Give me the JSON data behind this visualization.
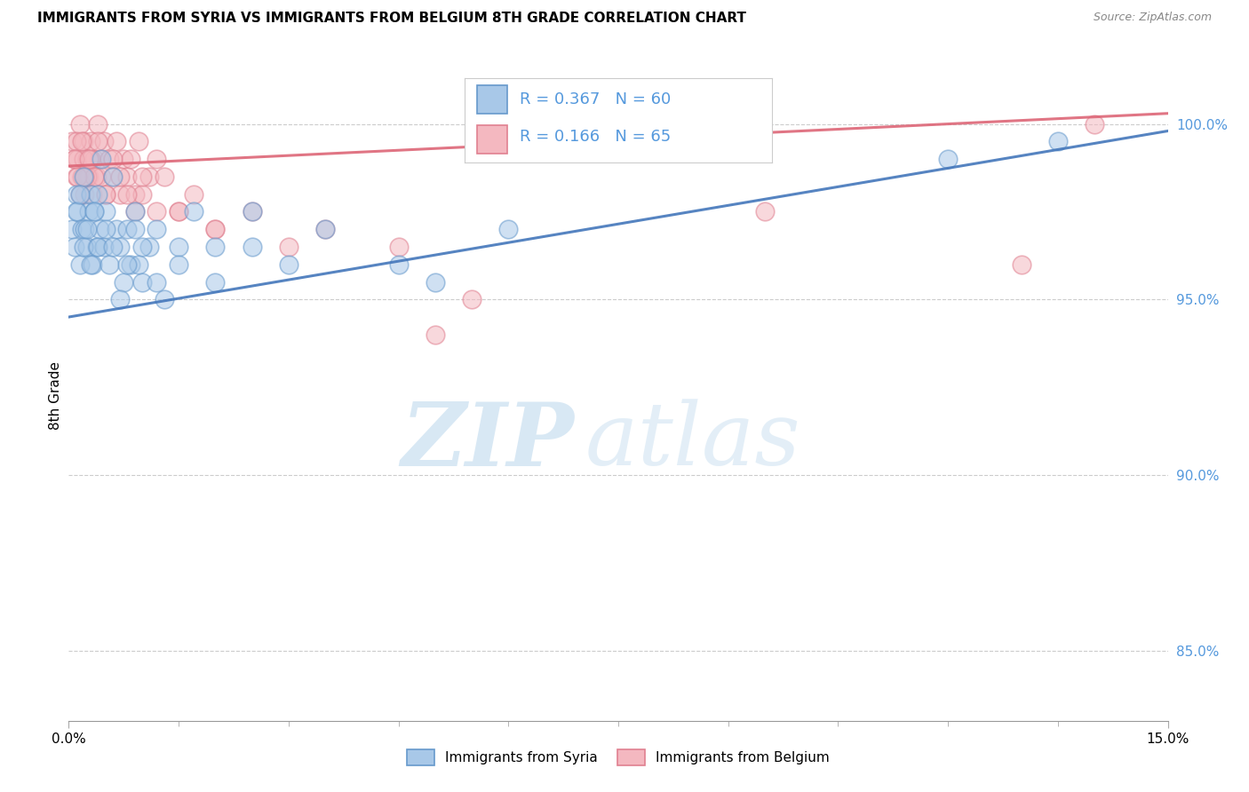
{
  "title": "IMMIGRANTS FROM SYRIA VS IMMIGRANTS FROM BELGIUM 8TH GRADE CORRELATION CHART",
  "source": "Source: ZipAtlas.com",
  "ylabel": "8th Grade",
  "xlim": [
    0.0,
    15.0
  ],
  "ylim": [
    83.0,
    101.5
  ],
  "y_ticks": [
    85.0,
    90.0,
    95.0,
    100.0
  ],
  "y_tick_labels": [
    "85.0%",
    "90.0%",
    "95.0%",
    "100.0%"
  ],
  "legend_r1": "R = 0.367",
  "legend_n1": "N = 60",
  "legend_r2": "R = 0.166",
  "legend_n2": "N = 65",
  "legend_label1": "Immigrants from Syria",
  "legend_label2": "Immigrants from Belgium",
  "color_syria": "#a8c8e8",
  "color_belgium": "#f4b8c0",
  "color_syria_edge": "#6699cc",
  "color_belgium_edge": "#e08090",
  "color_syria_line": "#4477bb",
  "color_belgium_line": "#dd6677",
  "color_ytick": "#5599dd",
  "watermark_zip": "ZIP",
  "watermark_atlas": "atlas",
  "syria_x": [
    0.05,
    0.08,
    0.1,
    0.12,
    0.15,
    0.18,
    0.2,
    0.22,
    0.25,
    0.28,
    0.3,
    0.32,
    0.35,
    0.38,
    0.4,
    0.42,
    0.45,
    0.48,
    0.5,
    0.55,
    0.6,
    0.65,
    0.7,
    0.75,
    0.8,
    0.85,
    0.9,
    0.95,
    1.0,
    1.1,
    1.2,
    1.3,
    1.5,
    1.7,
    2.0,
    2.5,
    3.0,
    3.5,
    4.5,
    5.0,
    0.1,
    0.15,
    0.2,
    0.25,
    0.3,
    0.35,
    0.4,
    0.5,
    0.6,
    0.7,
    0.8,
    0.9,
    1.0,
    1.2,
    1.5,
    2.0,
    2.5,
    6.0,
    12.0,
    13.5
  ],
  "syria_y": [
    97.0,
    96.5,
    98.0,
    97.5,
    96.0,
    97.0,
    98.5,
    97.0,
    96.5,
    97.5,
    98.0,
    96.0,
    97.5,
    96.5,
    98.0,
    97.0,
    99.0,
    96.5,
    97.5,
    96.0,
    98.5,
    97.0,
    96.5,
    95.5,
    97.0,
    96.0,
    97.5,
    96.0,
    95.5,
    96.5,
    97.0,
    95.0,
    96.5,
    97.5,
    95.5,
    96.5,
    96.0,
    97.0,
    96.0,
    95.5,
    97.5,
    98.0,
    96.5,
    97.0,
    96.0,
    97.5,
    96.5,
    97.0,
    96.5,
    95.0,
    96.0,
    97.0,
    96.5,
    95.5,
    96.0,
    96.5,
    97.5,
    97.0,
    99.0,
    99.5
  ],
  "belgium_x": [
    0.05,
    0.08,
    0.1,
    0.12,
    0.15,
    0.18,
    0.2,
    0.22,
    0.25,
    0.28,
    0.3,
    0.32,
    0.35,
    0.38,
    0.4,
    0.42,
    0.45,
    0.48,
    0.5,
    0.55,
    0.6,
    0.65,
    0.7,
    0.75,
    0.8,
    0.85,
    0.9,
    0.95,
    1.0,
    1.1,
    1.2,
    1.3,
    1.5,
    1.7,
    2.0,
    2.5,
    3.0,
    3.5,
    4.5,
    5.5,
    0.1,
    0.15,
    0.2,
    0.25,
    0.3,
    0.35,
    0.4,
    0.5,
    0.6,
    0.7,
    0.8,
    0.9,
    1.0,
    1.2,
    1.5,
    2.0,
    5.0,
    9.5,
    13.0,
    14.0,
    0.08,
    0.12,
    0.18,
    0.22,
    0.28
  ],
  "belgium_y": [
    99.5,
    99.0,
    98.5,
    99.0,
    100.0,
    98.5,
    99.5,
    98.0,
    99.0,
    98.5,
    99.5,
    98.0,
    99.0,
    98.5,
    100.0,
    99.0,
    98.5,
    99.5,
    98.0,
    99.0,
    98.5,
    99.5,
    98.0,
    99.0,
    98.5,
    99.0,
    98.0,
    99.5,
    98.0,
    98.5,
    99.0,
    98.5,
    97.5,
    98.0,
    97.0,
    97.5,
    96.5,
    97.0,
    96.5,
    95.0,
    99.5,
    98.0,
    99.0,
    98.5,
    99.0,
    98.5,
    99.5,
    98.0,
    99.0,
    98.5,
    98.0,
    97.5,
    98.5,
    97.5,
    97.5,
    97.0,
    94.0,
    97.5,
    96.0,
    100.0,
    99.0,
    98.5,
    99.5,
    98.5,
    99.0
  ],
  "syria_trend": [
    94.5,
    99.8
  ],
  "belgium_trend": [
    98.8,
    100.3
  ],
  "x_minor_ticks": [
    1.5,
    3.0,
    4.5,
    6.0,
    7.5,
    9.0,
    10.5,
    12.0,
    13.5
  ]
}
